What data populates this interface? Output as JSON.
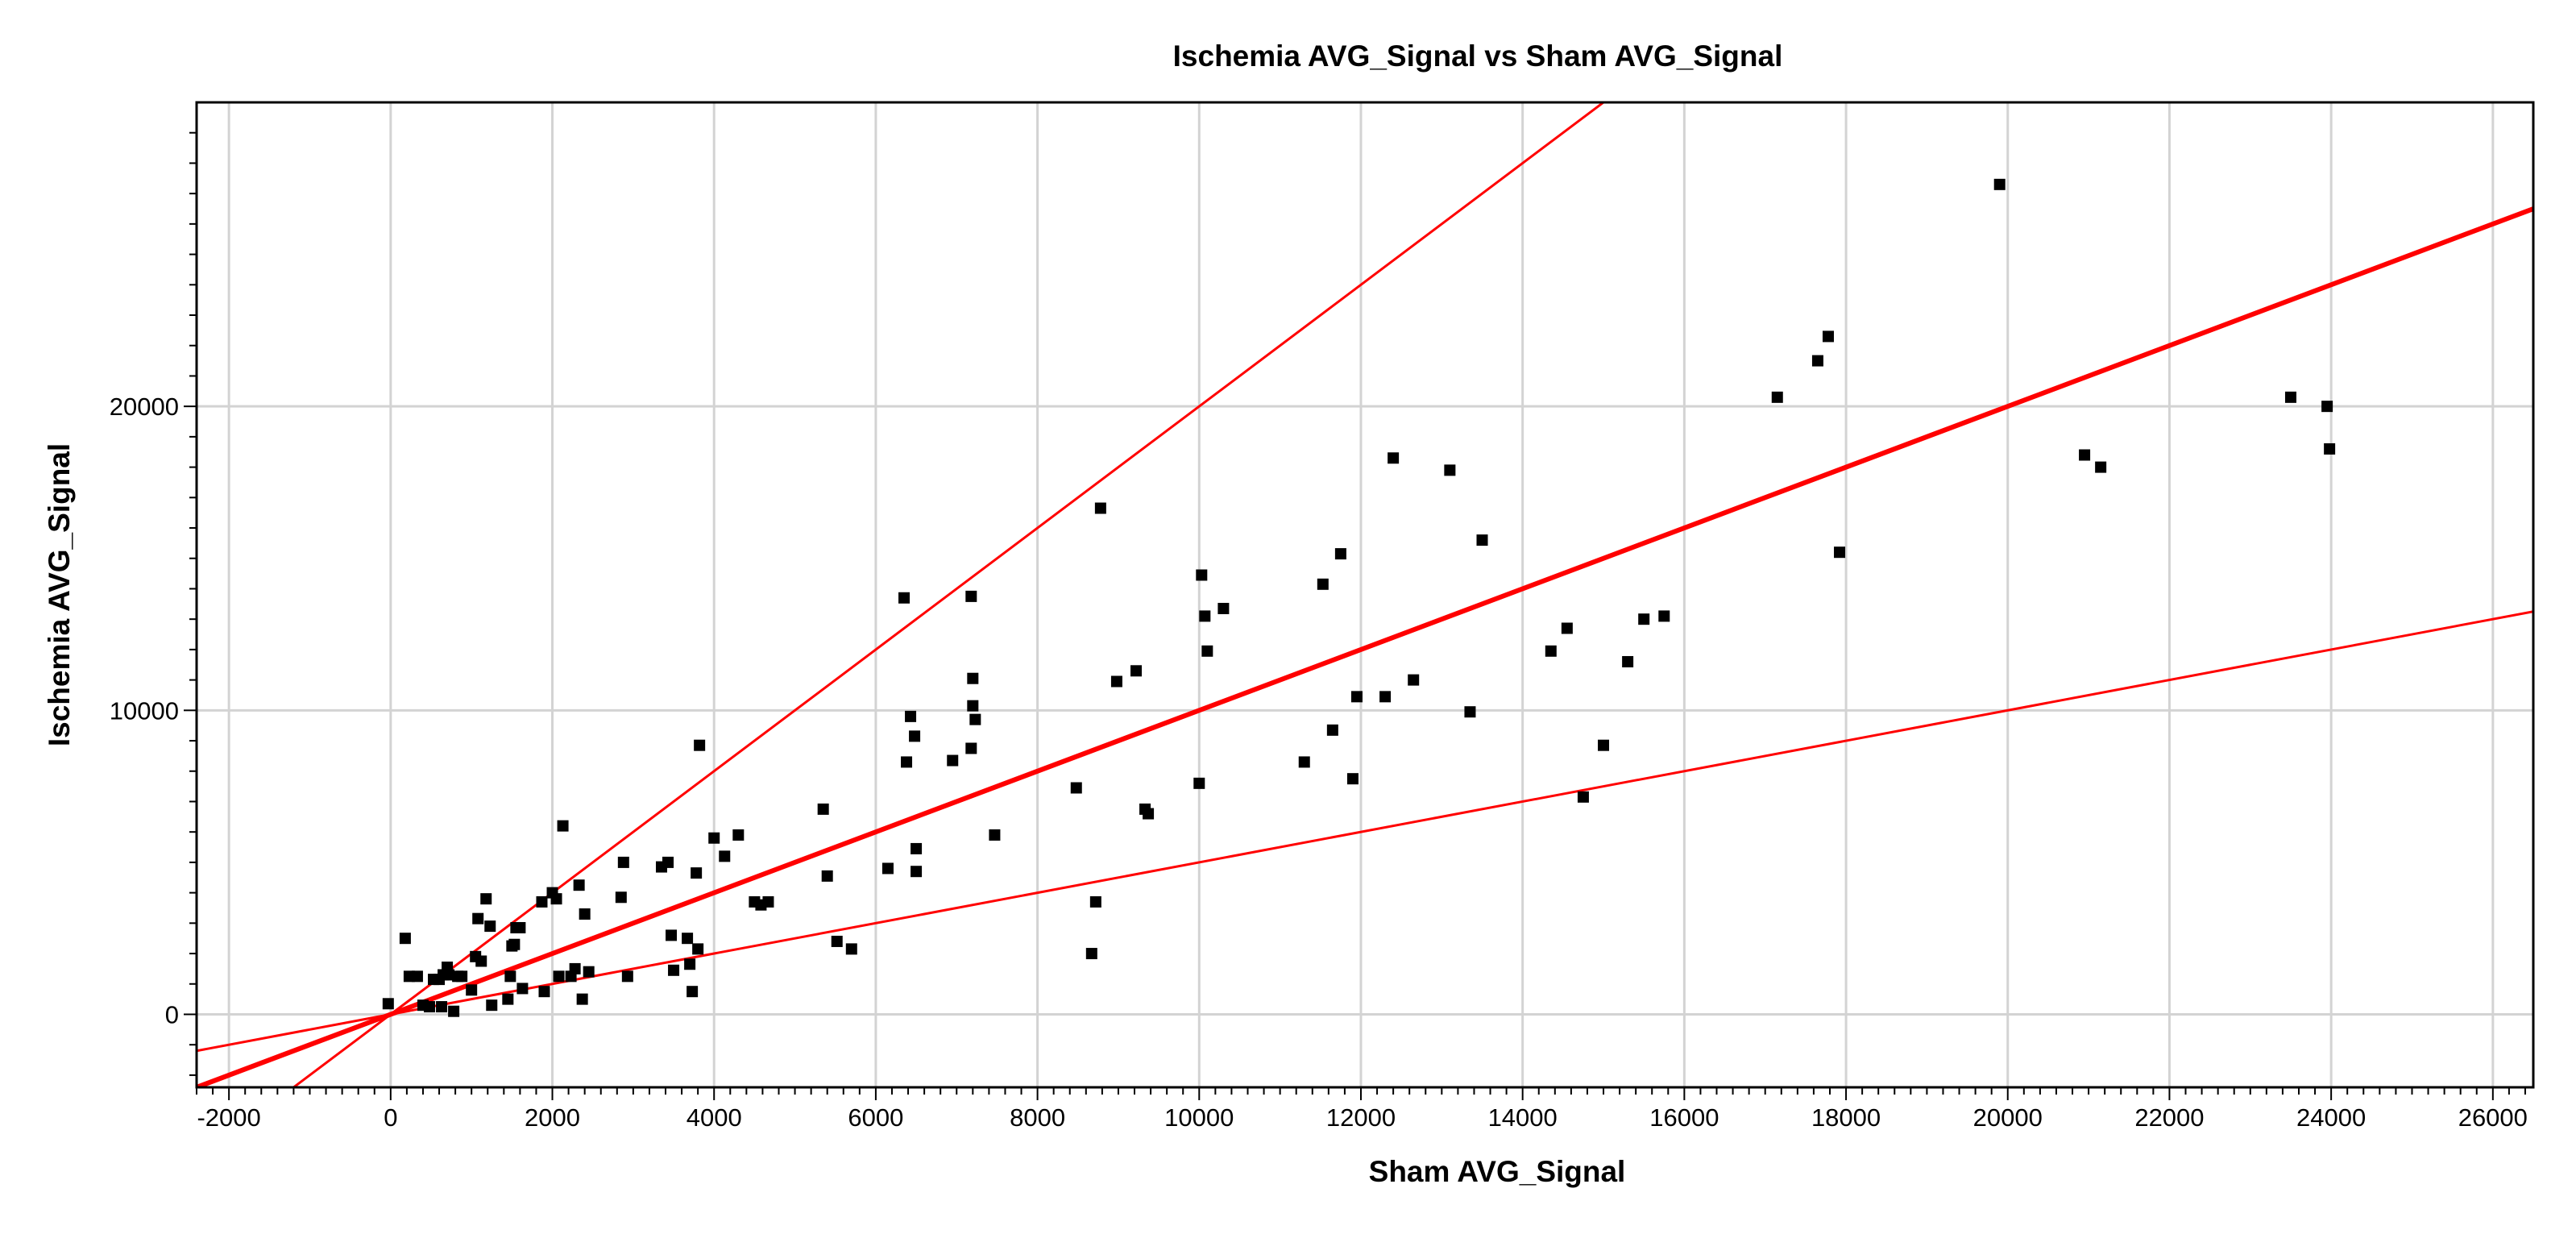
{
  "chart_data": {
    "type": "scatter",
    "title": "Ischemia AVG_Signal vs Sham AVG_Signal",
    "xlabel": "Sham AVG_Signal",
    "ylabel": "Ischemia AVG_Signal",
    "xlim": [
      -2400,
      26500
    ],
    "ylim": [
      -2400,
      30000
    ],
    "xticks": [
      -2000,
      0,
      2000,
      4000,
      6000,
      8000,
      10000,
      12000,
      14000,
      16000,
      18000,
      20000,
      22000,
      24000,
      26000
    ],
    "xtick_labels": [
      "-2000",
      "0",
      "2000",
      "4000",
      "6000",
      "8000",
      "10000",
      "12000",
      "14000",
      "16000",
      "18000",
      "20000",
      "22000",
      "24000",
      "26000"
    ],
    "yticks": [
      0,
      10000,
      20000
    ],
    "ytick_labels": [
      "0",
      "10000",
      "20000"
    ],
    "grid": true,
    "point_color": "#000000",
    "line_color": "#ff0000",
    "reference_lines": [
      {
        "slope": 2,
        "intercept": 0,
        "emphasis": "thin"
      },
      {
        "slope": 1,
        "intercept": 0,
        "emphasis": "thick"
      },
      {
        "slope": 0.5,
        "intercept": 0,
        "emphasis": "thin"
      }
    ],
    "points": [
      [
        -30,
        350
      ],
      [
        180,
        2500
      ],
      [
        230,
        1250
      ],
      [
        330,
        1250
      ],
      [
        400,
        300
      ],
      [
        480,
        250
      ],
      [
        530,
        1150
      ],
      [
        600,
        1150
      ],
      [
        630,
        250
      ],
      [
        650,
        1300
      ],
      [
        700,
        1550
      ],
      [
        720,
        1300
      ],
      [
        780,
        100
      ],
      [
        830,
        1250
      ],
      [
        880,
        1250
      ],
      [
        1000,
        800
      ],
      [
        1050,
        1900
      ],
      [
        1080,
        3150
      ],
      [
        1120,
        1750
      ],
      [
        1180,
        3800
      ],
      [
        1230,
        2900
      ],
      [
        1250,
        300
      ],
      [
        1450,
        500
      ],
      [
        1480,
        1250
      ],
      [
        1500,
        2250
      ],
      [
        1530,
        2300
      ],
      [
        1550,
        2850
      ],
      [
        1600,
        2850
      ],
      [
        1630,
        850
      ],
      [
        1870,
        3700
      ],
      [
        1900,
        750
      ],
      [
        2000,
        4000
      ],
      [
        2050,
        3800
      ],
      [
        2080,
        1250
      ],
      [
        2130,
        6200
      ],
      [
        2230,
        1250
      ],
      [
        2280,
        1500
      ],
      [
        2330,
        4250
      ],
      [
        2370,
        500
      ],
      [
        2400,
        3300
      ],
      [
        2450,
        1400
      ],
      [
        2850,
        3850
      ],
      [
        2880,
        5000
      ],
      [
        2930,
        1250
      ],
      [
        3350,
        4850
      ],
      [
        3430,
        5000
      ],
      [
        3470,
        2600
      ],
      [
        3500,
        1450
      ],
      [
        3670,
        2500
      ],
      [
        3700,
        1650
      ],
      [
        3730,
        750
      ],
      [
        3780,
        4650
      ],
      [
        3800,
        2150
      ],
      [
        3820,
        8850
      ],
      [
        4000,
        5800
      ],
      [
        4130,
        5200
      ],
      [
        4300,
        5900
      ],
      [
        4500,
        3700
      ],
      [
        4580,
        3600
      ],
      [
        4670,
        3700
      ],
      [
        5350,
        6750
      ],
      [
        5400,
        4550
      ],
      [
        5520,
        2400
      ],
      [
        5700,
        2150
      ],
      [
        6150,
        4800
      ],
      [
        6350,
        13700
      ],
      [
        6380,
        8300
      ],
      [
        6430,
        9800
      ],
      [
        6480,
        9150
      ],
      [
        6500,
        4700
      ],
      [
        6500,
        5450
      ],
      [
        6950,
        8350
      ],
      [
        7180,
        13750
      ],
      [
        7180,
        8750
      ],
      [
        7200,
        10150
      ],
      [
        7200,
        11050
      ],
      [
        7230,
        9700
      ],
      [
        7470,
        5900
      ],
      [
        8480,
        7450
      ],
      [
        8670,
        2000
      ],
      [
        8720,
        3700
      ],
      [
        8780,
        16650
      ],
      [
        8980,
        10950
      ],
      [
        9220,
        11300
      ],
      [
        9330,
        6750
      ],
      [
        9370,
        6600
      ],
      [
        10000,
        7600
      ],
      [
        10030,
        14450
      ],
      [
        10070,
        13100
      ],
      [
        10100,
        11950
      ],
      [
        10300,
        13350
      ],
      [
        11300,
        8300
      ],
      [
        11530,
        14150
      ],
      [
        11650,
        9350
      ],
      [
        11750,
        15150
      ],
      [
        11900,
        7750
      ],
      [
        11950,
        10450
      ],
      [
        12300,
        10450
      ],
      [
        12400,
        18300
      ],
      [
        12650,
        11000
      ],
      [
        13100,
        17900
      ],
      [
        13350,
        9950
      ],
      [
        13500,
        15600
      ],
      [
        14350,
        11950
      ],
      [
        14550,
        12700
      ],
      [
        14750,
        7150
      ],
      [
        15000,
        8850
      ],
      [
        15300,
        11600
      ],
      [
        15500,
        13000
      ],
      [
        15750,
        13100
      ],
      [
        17150,
        20300
      ],
      [
        17650,
        21500
      ],
      [
        17780,
        22300
      ],
      [
        17920,
        15200
      ],
      [
        19900,
        27300
      ],
      [
        20950,
        18400
      ],
      [
        21150,
        18000
      ],
      [
        23500,
        20300
      ],
      [
        23950,
        20000
      ],
      [
        23980,
        18600
      ]
    ]
  }
}
